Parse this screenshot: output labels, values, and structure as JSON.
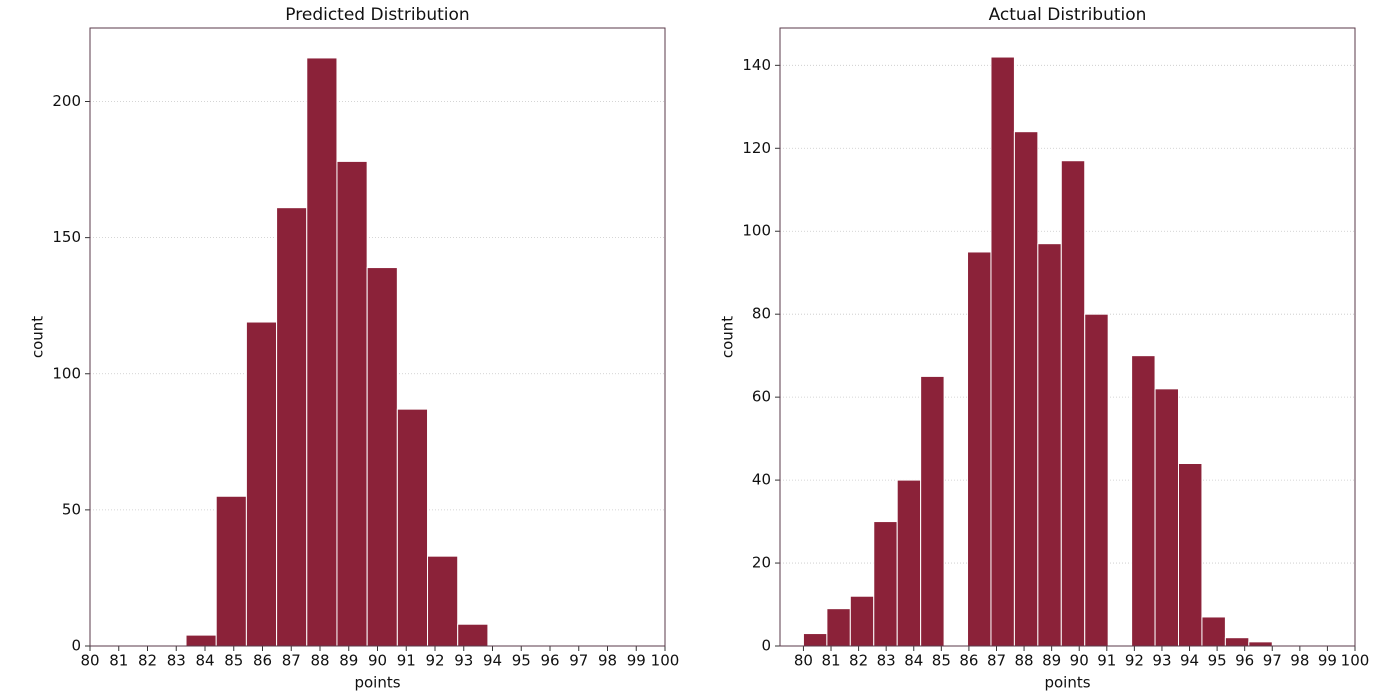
{
  "chart_data": [
    {
      "type": "histogram",
      "title": "Predicted Distribution",
      "xlabel": "points",
      "ylabel": "count",
      "bins": [
        83.34,
        84.39,
        85.44,
        86.49,
        87.54,
        88.59,
        89.64,
        90.69,
        91.74,
        92.79,
        93.84
      ],
      "values": [
        4,
        55,
        119,
        161,
        216,
        178,
        139,
        87,
        33,
        8
      ],
      "color": "#8b2239",
      "xlim": [
        80,
        100
      ],
      "xticks": [
        80,
        81,
        82,
        83,
        84,
        85,
        86,
        87,
        88,
        89,
        90,
        91,
        92,
        93,
        94,
        95,
        96,
        97,
        98,
        99,
        100
      ],
      "ylim": [
        0,
        227
      ],
      "yticks": [
        0,
        50,
        100,
        150,
        200
      ],
      "grid": true
    },
    {
      "type": "histogram",
      "title": "Actual Distribution",
      "xlabel": "points",
      "ylabel": "count",
      "bins": [
        80,
        80.85,
        81.7,
        82.55,
        83.4,
        84.25,
        85.1,
        85.95,
        86.8,
        87.65,
        88.5,
        89.35,
        90.2,
        91.05,
        91.9,
        92.75,
        93.6,
        94.45,
        95.3,
        96.15,
        97
      ],
      "values": [
        3,
        9,
        12,
        30,
        40,
        65,
        0,
        95,
        142,
        124,
        97,
        117,
        80,
        0,
        70,
        62,
        44,
        7,
        2,
        1
      ],
      "color": "#8b2239",
      "xlim": [
        79.15,
        100
      ],
      "xticks": [
        80,
        81,
        82,
        83,
        84,
        85,
        86,
        87,
        88,
        89,
        90,
        91,
        92,
        93,
        94,
        95,
        96,
        97,
        98,
        99,
        100
      ],
      "ylim": [
        0,
        149
      ],
      "yticks": [
        0,
        20,
        40,
        60,
        80,
        100,
        120,
        140
      ],
      "grid": true
    }
  ]
}
